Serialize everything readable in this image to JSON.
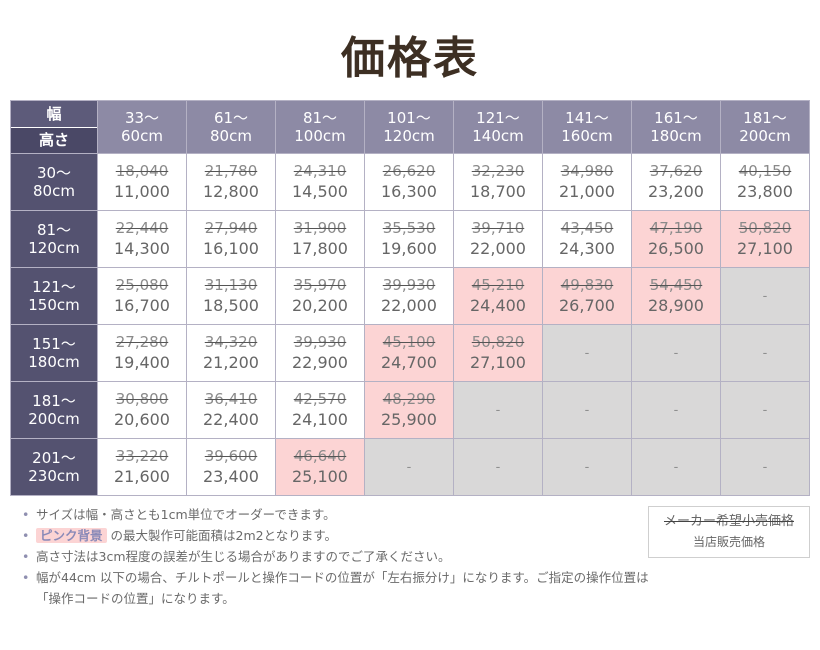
{
  "title": "価格表",
  "corner": {
    "width_label": "幅",
    "height_label": "高さ"
  },
  "columns": [
    {
      "line1": "33〜",
      "line2": "60cm"
    },
    {
      "line1": "61〜",
      "line2": "80cm"
    },
    {
      "line1": "81〜",
      "line2": "100cm"
    },
    {
      "line1": "101〜",
      "line2": "120cm"
    },
    {
      "line1": "121〜",
      "line2": "140cm"
    },
    {
      "line1": "141〜",
      "line2": "160cm"
    },
    {
      "line1": "161〜",
      "line2": "180cm"
    },
    {
      "line1": "181〜",
      "line2": "200cm"
    }
  ],
  "rows": [
    {
      "line1": "30〜",
      "line2": "80cm",
      "cells": [
        {
          "msrp": "18,040",
          "price": "11,000",
          "bg": "white"
        },
        {
          "msrp": "21,780",
          "price": "12,800",
          "bg": "white"
        },
        {
          "msrp": "24,310",
          "price": "14,500",
          "bg": "white"
        },
        {
          "msrp": "26,620",
          "price": "16,300",
          "bg": "white"
        },
        {
          "msrp": "32,230",
          "price": "18,700",
          "bg": "white"
        },
        {
          "msrp": "34,980",
          "price": "21,000",
          "bg": "white"
        },
        {
          "msrp": "37,620",
          "price": "23,200",
          "bg": "white"
        },
        {
          "msrp": "40,150",
          "price": "23,800",
          "bg": "white"
        }
      ]
    },
    {
      "line1": "81〜",
      "line2": "120cm",
      "cells": [
        {
          "msrp": "22,440",
          "price": "14,300",
          "bg": "white"
        },
        {
          "msrp": "27,940",
          "price": "16,100",
          "bg": "white"
        },
        {
          "msrp": "31,900",
          "price": "17,800",
          "bg": "white"
        },
        {
          "msrp": "35,530",
          "price": "19,600",
          "bg": "white"
        },
        {
          "msrp": "39,710",
          "price": "22,000",
          "bg": "white"
        },
        {
          "msrp": "43,450",
          "price": "24,300",
          "bg": "white"
        },
        {
          "msrp": "47,190",
          "price": "26,500",
          "bg": "pink"
        },
        {
          "msrp": "50,820",
          "price": "27,100",
          "bg": "pink"
        }
      ]
    },
    {
      "line1": "121〜",
      "line2": "150cm",
      "cells": [
        {
          "msrp": "25,080",
          "price": "16,700",
          "bg": "white"
        },
        {
          "msrp": "31,130",
          "price": "18,500",
          "bg": "white"
        },
        {
          "msrp": "35,970",
          "price": "20,200",
          "bg": "white"
        },
        {
          "msrp": "39,930",
          "price": "22,000",
          "bg": "white"
        },
        {
          "msrp": "45,210",
          "price": "24,400",
          "bg": "pink"
        },
        {
          "msrp": "49,830",
          "price": "26,700",
          "bg": "pink"
        },
        {
          "msrp": "54,450",
          "price": "28,900",
          "bg": "pink"
        },
        {
          "na": "-"
        }
      ]
    },
    {
      "line1": "151〜",
      "line2": "180cm",
      "cells": [
        {
          "msrp": "27,280",
          "price": "19,400",
          "bg": "white"
        },
        {
          "msrp": "34,320",
          "price": "21,200",
          "bg": "white"
        },
        {
          "msrp": "39,930",
          "price": "22,900",
          "bg": "white"
        },
        {
          "msrp": "45,100",
          "price": "24,700",
          "bg": "pink"
        },
        {
          "msrp": "50,820",
          "price": "27,100",
          "bg": "pink"
        },
        {
          "na": "-"
        },
        {
          "na": "-"
        },
        {
          "na": "-"
        }
      ]
    },
    {
      "line1": "181〜",
      "line2": "200cm",
      "cells": [
        {
          "msrp": "30,800",
          "price": "20,600",
          "bg": "white"
        },
        {
          "msrp": "36,410",
          "price": "22,400",
          "bg": "white"
        },
        {
          "msrp": "42,570",
          "price": "24,100",
          "bg": "white"
        },
        {
          "msrp": "48,290",
          "price": "25,900",
          "bg": "pink"
        },
        {
          "na": "-"
        },
        {
          "na": "-"
        },
        {
          "na": "-"
        },
        {
          "na": "-"
        }
      ]
    },
    {
      "line1": "201〜",
      "line2": "230cm",
      "cells": [
        {
          "msrp": "33,220",
          "price": "21,600",
          "bg": "white"
        },
        {
          "msrp": "39,600",
          "price": "23,400",
          "bg": "white"
        },
        {
          "msrp": "46,640",
          "price": "25,100",
          "bg": "pink"
        },
        {
          "na": "-"
        },
        {
          "na": "-"
        },
        {
          "na": "-"
        },
        {
          "na": "-"
        },
        {
          "na": "-"
        }
      ]
    }
  ],
  "notes": {
    "note1": "サイズは幅・高さとも1cm単位でオーダーできます。",
    "note2_highlight": "ピンク背景",
    "note2_rest": "の最大製作可能面積は2m2となります。",
    "note3": "高さ寸法は3cm程度の誤差が生じる場合がありますのでご了承ください。",
    "note4": "幅が44cm 以下の場合、チルトポールと操作コードの位置が「左右振分け」になります。ご指定の操作位置は「操作コードの位置」になります。"
  },
  "legend": {
    "msrp_label": "メーカー希望小売価格",
    "price_label": "当店販売価格"
  },
  "colors": {
    "header_dark": "#545270",
    "header_light": "#8d8aa5",
    "pink": "#fcd4d4",
    "unavailable": "#d9d8d8"
  }
}
